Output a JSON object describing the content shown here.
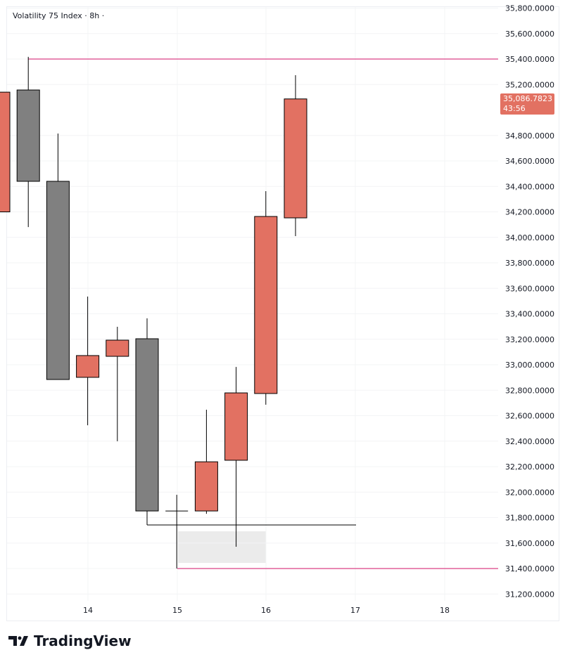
{
  "chart": {
    "title": "Volatility 75 Index · 8h ·",
    "current_price": "35,086.7823",
    "countdown": "43:56",
    "y_ticks": [
      "35,800.0000",
      "35,600.0000",
      "35,400.0000",
      "35,200.0000",
      "34,800.0000",
      "34,600.0000",
      "34,400.0000",
      "34,200.0000",
      "34,000.0000",
      "33,800.0000",
      "33,600.0000",
      "33,400.0000",
      "33,200.0000",
      "33,000.0000",
      "32,800.0000",
      "32,600.0000",
      "32,400.0000",
      "32,200.0000",
      "32,000.0000",
      "31,800.0000",
      "31,600.0000",
      "31,400.0000",
      "31,200.0000"
    ],
    "x_ticks": [
      "14",
      "15",
      "16",
      "17",
      "18"
    ],
    "colors": {
      "up": "#e27162",
      "down": "#808080",
      "level_line": "#e0609a",
      "zone": "#ebebeb"
    },
    "levels": [
      35400,
      31400
    ],
    "candles": [
      {
        "o": 34200,
        "h": 35150,
        "l": 34150,
        "c": 35140
      },
      {
        "o": 35157,
        "h": 35417,
        "l": 34081,
        "c": 34440
      },
      {
        "o": 34440,
        "h": 34815,
        "l": 32884,
        "c": 32884
      },
      {
        "o": 32901,
        "h": 33535,
        "l": 32525,
        "c": 33072
      },
      {
        "o": 33066,
        "h": 33298,
        "l": 32399,
        "c": 33193
      },
      {
        "o": 33204,
        "h": 33364,
        "l": 31742,
        "c": 31852
      },
      {
        "o": 31852,
        "h": 31979,
        "l": 31400,
        "c": 31852
      },
      {
        "o": 31852,
        "h": 32647,
        "l": 31830,
        "c": 32238
      },
      {
        "o": 32250,
        "h": 32983,
        "l": 31571,
        "c": 32779
      },
      {
        "o": 32774,
        "h": 34363,
        "l": 32686,
        "c": 34164
      },
      {
        "o": 34153,
        "h": 35273,
        "l": 34010,
        "c": 35086.7823
      }
    ]
  },
  "brand": {
    "name": "TradingView"
  }
}
